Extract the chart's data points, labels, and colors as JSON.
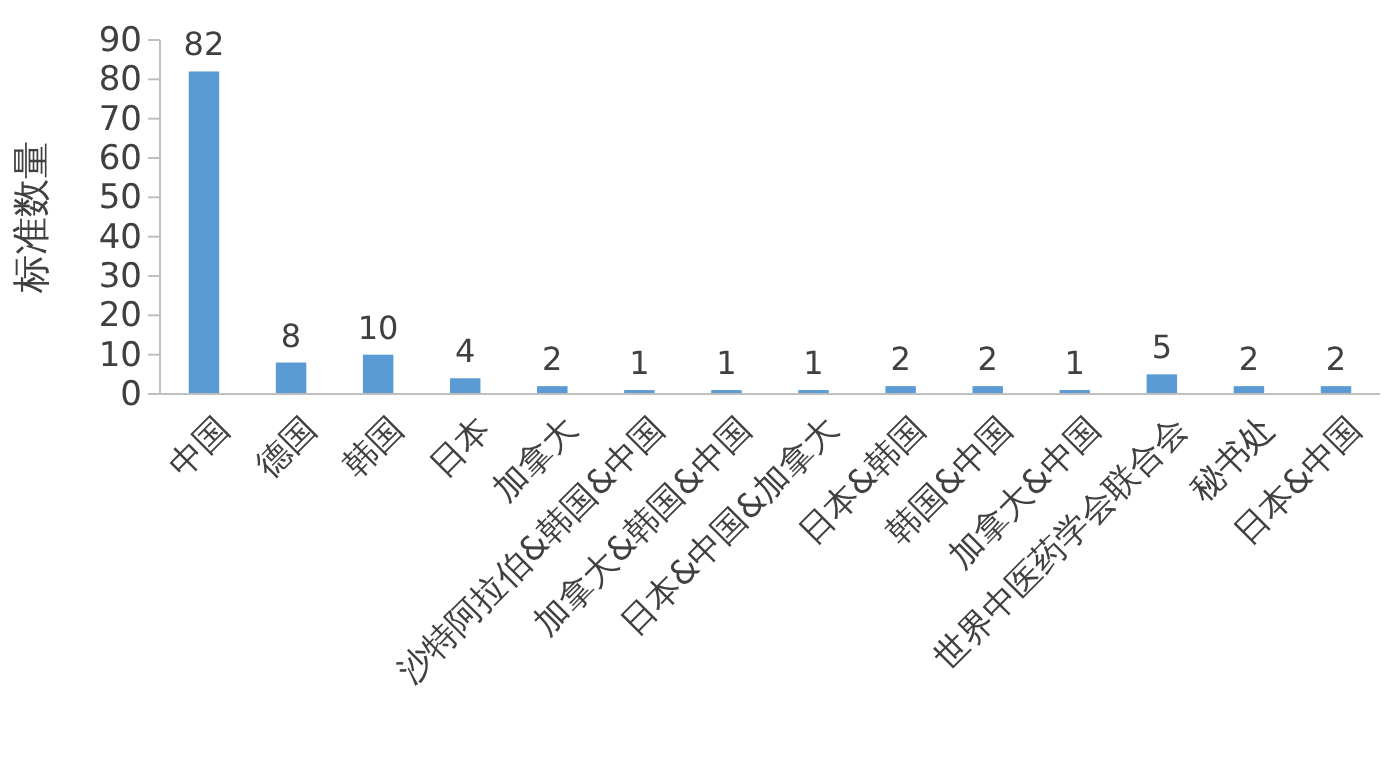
{
  "chart_data": {
    "type": "bar",
    "ylabel": "标准数量",
    "categories": [
      "中国",
      "德国",
      "韩国",
      "日本",
      "加拿大",
      "沙特阿拉伯&韩国&中国",
      "加拿大&韩国&中国",
      "日本&中国&加拿大",
      "日本&韩国",
      "韩国&中国",
      "加拿大&中国",
      "世界中医药学会联合会",
      "秘书处",
      "日本&中国"
    ],
    "values": [
      82,
      8,
      10,
      4,
      2,
      1,
      1,
      1,
      2,
      2,
      1,
      5,
      2,
      2
    ],
    "color": "#5b9bd5",
    "ylim": [
      0,
      90
    ],
    "yticks": [
      0,
      10,
      20,
      30,
      40,
      50,
      60,
      70,
      80,
      90
    ],
    "grid": false,
    "data_labels": true
  }
}
